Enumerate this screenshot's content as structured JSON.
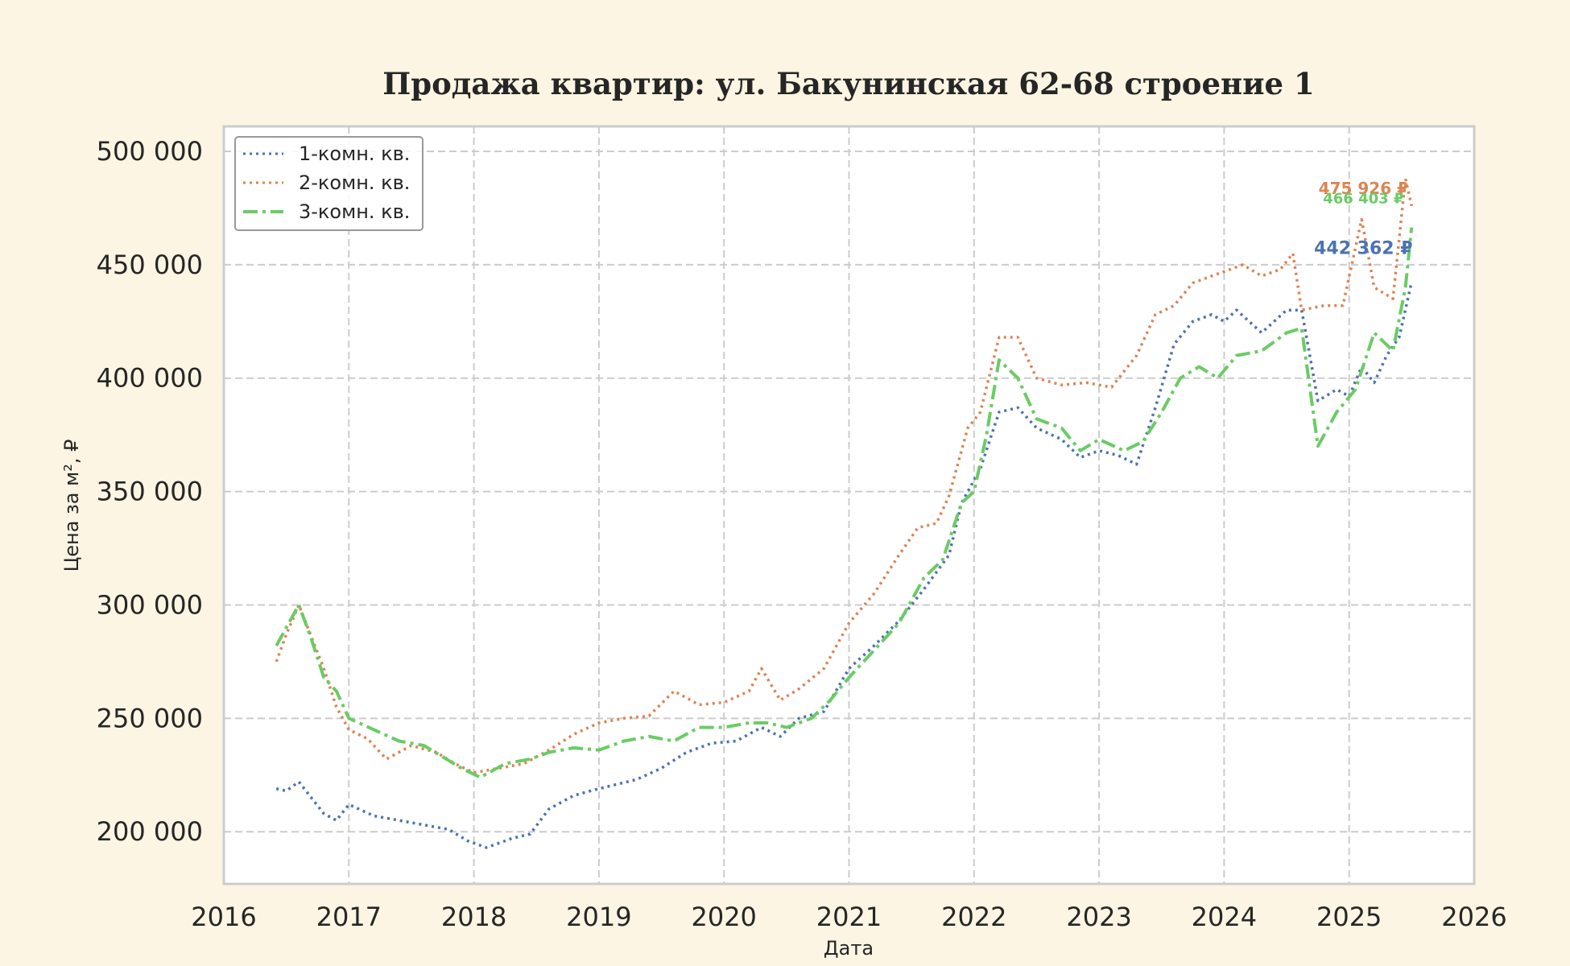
{
  "chart_data": {
    "type": "line",
    "title": "Продажа квартир: ул. Бакунинская 62-68 строение 1",
    "xlabel": "Дата",
    "ylabel": "Цена за м², ₽",
    "xlim": [
      2016.0,
      2026.0
    ],
    "ylim": [
      177000,
      511000
    ],
    "x_ticks": [
      2016,
      2017,
      2018,
      2019,
      2020,
      2021,
      2022,
      2023,
      2024,
      2025,
      2026
    ],
    "x_tick_labels": [
      "2016",
      "2017",
      "2018",
      "2019",
      "2020",
      "2021",
      "2022",
      "2023",
      "2024",
      "2025",
      "2026"
    ],
    "y_ticks": [
      200000,
      250000,
      300000,
      350000,
      400000,
      450000,
      500000
    ],
    "y_tick_labels": [
      "200 000",
      "250 000",
      "300 000",
      "350 000",
      "400 000",
      "450 000",
      "500 000"
    ],
    "grid": true,
    "legend_position": "top-left",
    "series": [
      {
        "name": "1-комн. кв.",
        "color": "#4c72b0",
        "style": "dotted",
        "end_label": "442 362 ₽",
        "points": [
          [
            2016.42,
            219000
          ],
          [
            2016.5,
            218000
          ],
          [
            2016.6,
            222000
          ],
          [
            2016.7,
            215000
          ],
          [
            2016.8,
            208000
          ],
          [
            2016.9,
            205000
          ],
          [
            2017.0,
            212000
          ],
          [
            2017.2,
            207000
          ],
          [
            2017.4,
            205000
          ],
          [
            2017.6,
            203000
          ],
          [
            2017.8,
            201000
          ],
          [
            2017.95,
            196000
          ],
          [
            2018.1,
            193000
          ],
          [
            2018.3,
            197000
          ],
          [
            2018.45,
            199000
          ],
          [
            2018.6,
            210000
          ],
          [
            2018.8,
            216000
          ],
          [
            2019.0,
            219000
          ],
          [
            2019.3,
            223000
          ],
          [
            2019.5,
            228000
          ],
          [
            2019.7,
            235000
          ],
          [
            2019.9,
            239000
          ],
          [
            2020.1,
            240000
          ],
          [
            2020.3,
            246000
          ],
          [
            2020.45,
            242000
          ],
          [
            2020.6,
            250000
          ],
          [
            2020.8,
            253000
          ],
          [
            2021.0,
            272000
          ],
          [
            2021.2,
            282000
          ],
          [
            2021.4,
            293000
          ],
          [
            2021.6,
            307000
          ],
          [
            2021.8,
            322000
          ],
          [
            2021.9,
            345000
          ],
          [
            2022.05,
            360000
          ],
          [
            2022.2,
            385000
          ],
          [
            2022.35,
            387000
          ],
          [
            2022.5,
            378000
          ],
          [
            2022.7,
            373000
          ],
          [
            2022.85,
            365000
          ],
          [
            2023.0,
            368000
          ],
          [
            2023.15,
            366000
          ],
          [
            2023.3,
            362000
          ],
          [
            2023.45,
            387000
          ],
          [
            2023.6,
            415000
          ],
          [
            2023.75,
            425000
          ],
          [
            2023.9,
            428000
          ],
          [
            2024.0,
            425000
          ],
          [
            2024.1,
            430000
          ],
          [
            2024.3,
            420000
          ],
          [
            2024.5,
            430000
          ],
          [
            2024.62,
            430000
          ],
          [
            2024.75,
            390000
          ],
          [
            2024.9,
            395000
          ],
          [
            2025.0,
            392000
          ],
          [
            2025.1,
            405000
          ],
          [
            2025.2,
            398000
          ],
          [
            2025.3,
            410000
          ],
          [
            2025.4,
            418000
          ],
          [
            2025.5,
            442362
          ]
        ]
      },
      {
        "name": "2-комн. кв.",
        "color": "#dd8452",
        "style": "dotted",
        "end_label": "475 926 ₽",
        "points": [
          [
            2016.42,
            275000
          ],
          [
            2016.5,
            287000
          ],
          [
            2016.6,
            300000
          ],
          [
            2016.7,
            286000
          ],
          [
            2016.8,
            272000
          ],
          [
            2016.9,
            255000
          ],
          [
            2017.0,
            245000
          ],
          [
            2017.15,
            241000
          ],
          [
            2017.3,
            232000
          ],
          [
            2017.5,
            238000
          ],
          [
            2017.7,
            235000
          ],
          [
            2017.85,
            230000
          ],
          [
            2018.0,
            226000
          ],
          [
            2018.2,
            228000
          ],
          [
            2018.4,
            230000
          ],
          [
            2018.6,
            236000
          ],
          [
            2018.8,
            243000
          ],
          [
            2019.0,
            248000
          ],
          [
            2019.2,
            250000
          ],
          [
            2019.4,
            251000
          ],
          [
            2019.6,
            262000
          ],
          [
            2019.8,
            256000
          ],
          [
            2020.0,
            257000
          ],
          [
            2020.2,
            262000
          ],
          [
            2020.3,
            272000
          ],
          [
            2020.45,
            258000
          ],
          [
            2020.6,
            263000
          ],
          [
            2020.8,
            272000
          ],
          [
            2021.0,
            292000
          ],
          [
            2021.2,
            305000
          ],
          [
            2021.4,
            322000
          ],
          [
            2021.55,
            334000
          ],
          [
            2021.7,
            336000
          ],
          [
            2021.8,
            348000
          ],
          [
            2021.95,
            378000
          ],
          [
            2022.05,
            385000
          ],
          [
            2022.2,
            418000
          ],
          [
            2022.35,
            418000
          ],
          [
            2022.5,
            400000
          ],
          [
            2022.7,
            397000
          ],
          [
            2022.9,
            398000
          ],
          [
            2023.1,
            396000
          ],
          [
            2023.3,
            410000
          ],
          [
            2023.45,
            428000
          ],
          [
            2023.6,
            432000
          ],
          [
            2023.75,
            442000
          ],
          [
            2023.9,
            445000
          ],
          [
            2024.0,
            447000
          ],
          [
            2024.15,
            450000
          ],
          [
            2024.3,
            445000
          ],
          [
            2024.45,
            448000
          ],
          [
            2024.55,
            455000
          ],
          [
            2024.62,
            430000
          ],
          [
            2024.8,
            432000
          ],
          [
            2024.95,
            432000
          ],
          [
            2025.1,
            470000
          ],
          [
            2025.2,
            440000
          ],
          [
            2025.35,
            435000
          ],
          [
            2025.45,
            488000
          ],
          [
            2025.5,
            475926
          ]
        ]
      },
      {
        "name": "3-комн. кв.",
        "color": "#6acc64",
        "style": "dashdot",
        "end_label": "466 403 ₽",
        "points": [
          [
            2016.42,
            282000
          ],
          [
            2016.5,
            290000
          ],
          [
            2016.6,
            300000
          ],
          [
            2016.7,
            285000
          ],
          [
            2016.8,
            268000
          ],
          [
            2016.9,
            262000
          ],
          [
            2017.0,
            250000
          ],
          [
            2017.2,
            245000
          ],
          [
            2017.4,
            240000
          ],
          [
            2017.6,
            238000
          ],
          [
            2017.75,
            233000
          ],
          [
            2017.9,
            228000
          ],
          [
            2018.05,
            224000
          ],
          [
            2018.25,
            230000
          ],
          [
            2018.45,
            232000
          ],
          [
            2018.6,
            235000
          ],
          [
            2018.8,
            237000
          ],
          [
            2019.0,
            236000
          ],
          [
            2019.2,
            240000
          ],
          [
            2019.4,
            242000
          ],
          [
            2019.6,
            240000
          ],
          [
            2019.8,
            246000
          ],
          [
            2020.0,
            246000
          ],
          [
            2020.2,
            248000
          ],
          [
            2020.35,
            248000
          ],
          [
            2020.5,
            246000
          ],
          [
            2020.7,
            250000
          ],
          [
            2020.85,
            258000
          ],
          [
            2021.0,
            268000
          ],
          [
            2021.2,
            280000
          ],
          [
            2021.4,
            292000
          ],
          [
            2021.6,
            312000
          ],
          [
            2021.75,
            320000
          ],
          [
            2021.9,
            345000
          ],
          [
            2022.0,
            350000
          ],
          [
            2022.1,
            375000
          ],
          [
            2022.2,
            408000
          ],
          [
            2022.35,
            400000
          ],
          [
            2022.5,
            382000
          ],
          [
            2022.7,
            378000
          ],
          [
            2022.85,
            368000
          ],
          [
            2023.0,
            373000
          ],
          [
            2023.2,
            368000
          ],
          [
            2023.35,
            372000
          ],
          [
            2023.5,
            385000
          ],
          [
            2023.65,
            400000
          ],
          [
            2023.8,
            405000
          ],
          [
            2023.95,
            400000
          ],
          [
            2024.1,
            410000
          ],
          [
            2024.3,
            412000
          ],
          [
            2024.5,
            420000
          ],
          [
            2024.62,
            422000
          ],
          [
            2024.75,
            370000
          ],
          [
            2024.9,
            385000
          ],
          [
            2025.05,
            395000
          ],
          [
            2025.2,
            420000
          ],
          [
            2025.35,
            412000
          ],
          [
            2025.45,
            440000
          ],
          [
            2025.5,
            466403
          ]
        ]
      }
    ]
  }
}
